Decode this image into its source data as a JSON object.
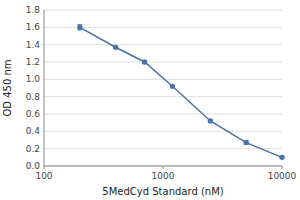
{
  "chart_data": {
    "type": "line",
    "x": [
      200,
      400,
      700,
      1200,
      2500,
      5000,
      10000
    ],
    "values": [
      1.6,
      1.37,
      1.2,
      0.92,
      0.52,
      0.27,
      0.1
    ],
    "yerr": [
      0.03,
      0.01,
      0.02,
      0.01,
      0.01,
      0.02,
      0.01
    ],
    "xlabel": "5MedCyd Standard (nM)",
    "ylabel": "OD 450 nm",
    "log": "x",
    "xlim": [
      100,
      10000
    ],
    "xticks": [
      100,
      1000,
      10000
    ],
    "ylim": [
      0,
      1.8
    ],
    "yticks": [
      {
        "value": 0,
        "label": "0.0"
      },
      0.2,
      0.4,
      0.6,
      0.8,
      {
        "value": 1.0,
        "label": "1.0"
      },
      1.2,
      1.4,
      1.6,
      1.8
    ],
    "grid": true,
    "color": "#4a72a8",
    "marker": "circle",
    "line_style": "solid"
  }
}
